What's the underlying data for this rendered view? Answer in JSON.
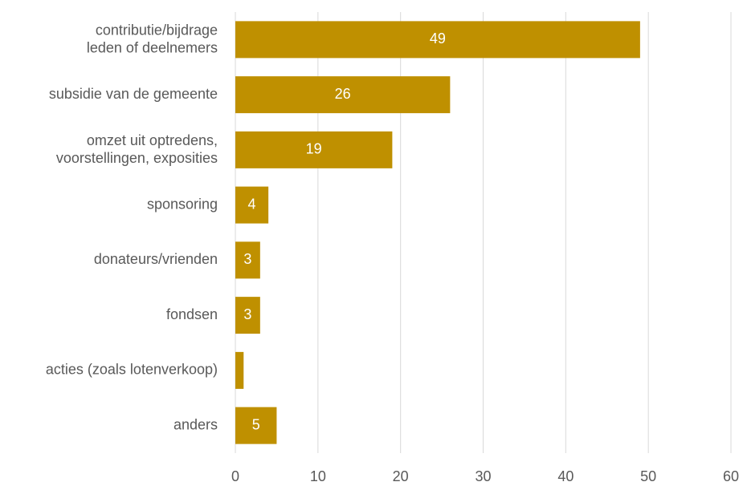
{
  "chart_data": {
    "type": "barh",
    "categories": [
      "contributie/bijdrage\nleden of deelnemers",
      "subsidie van de gemeente",
      "omzet uit optredens,\nvoorstellingen, exposities",
      "sponsoring",
      "donateurs/vrienden",
      "fondsen",
      "acties (zoals lotenverkoop)",
      "anders"
    ],
    "values": [
      49,
      26,
      19,
      4,
      3,
      3,
      1,
      5
    ],
    "value_labels": [
      "49",
      "26",
      "19",
      "4",
      "3",
      "3",
      null,
      "5"
    ],
    "color": "#bf9000",
    "xlim": [
      0,
      60
    ],
    "xticks": [
      0,
      10,
      20,
      30,
      40,
      50,
      60
    ],
    "grid": true
  }
}
